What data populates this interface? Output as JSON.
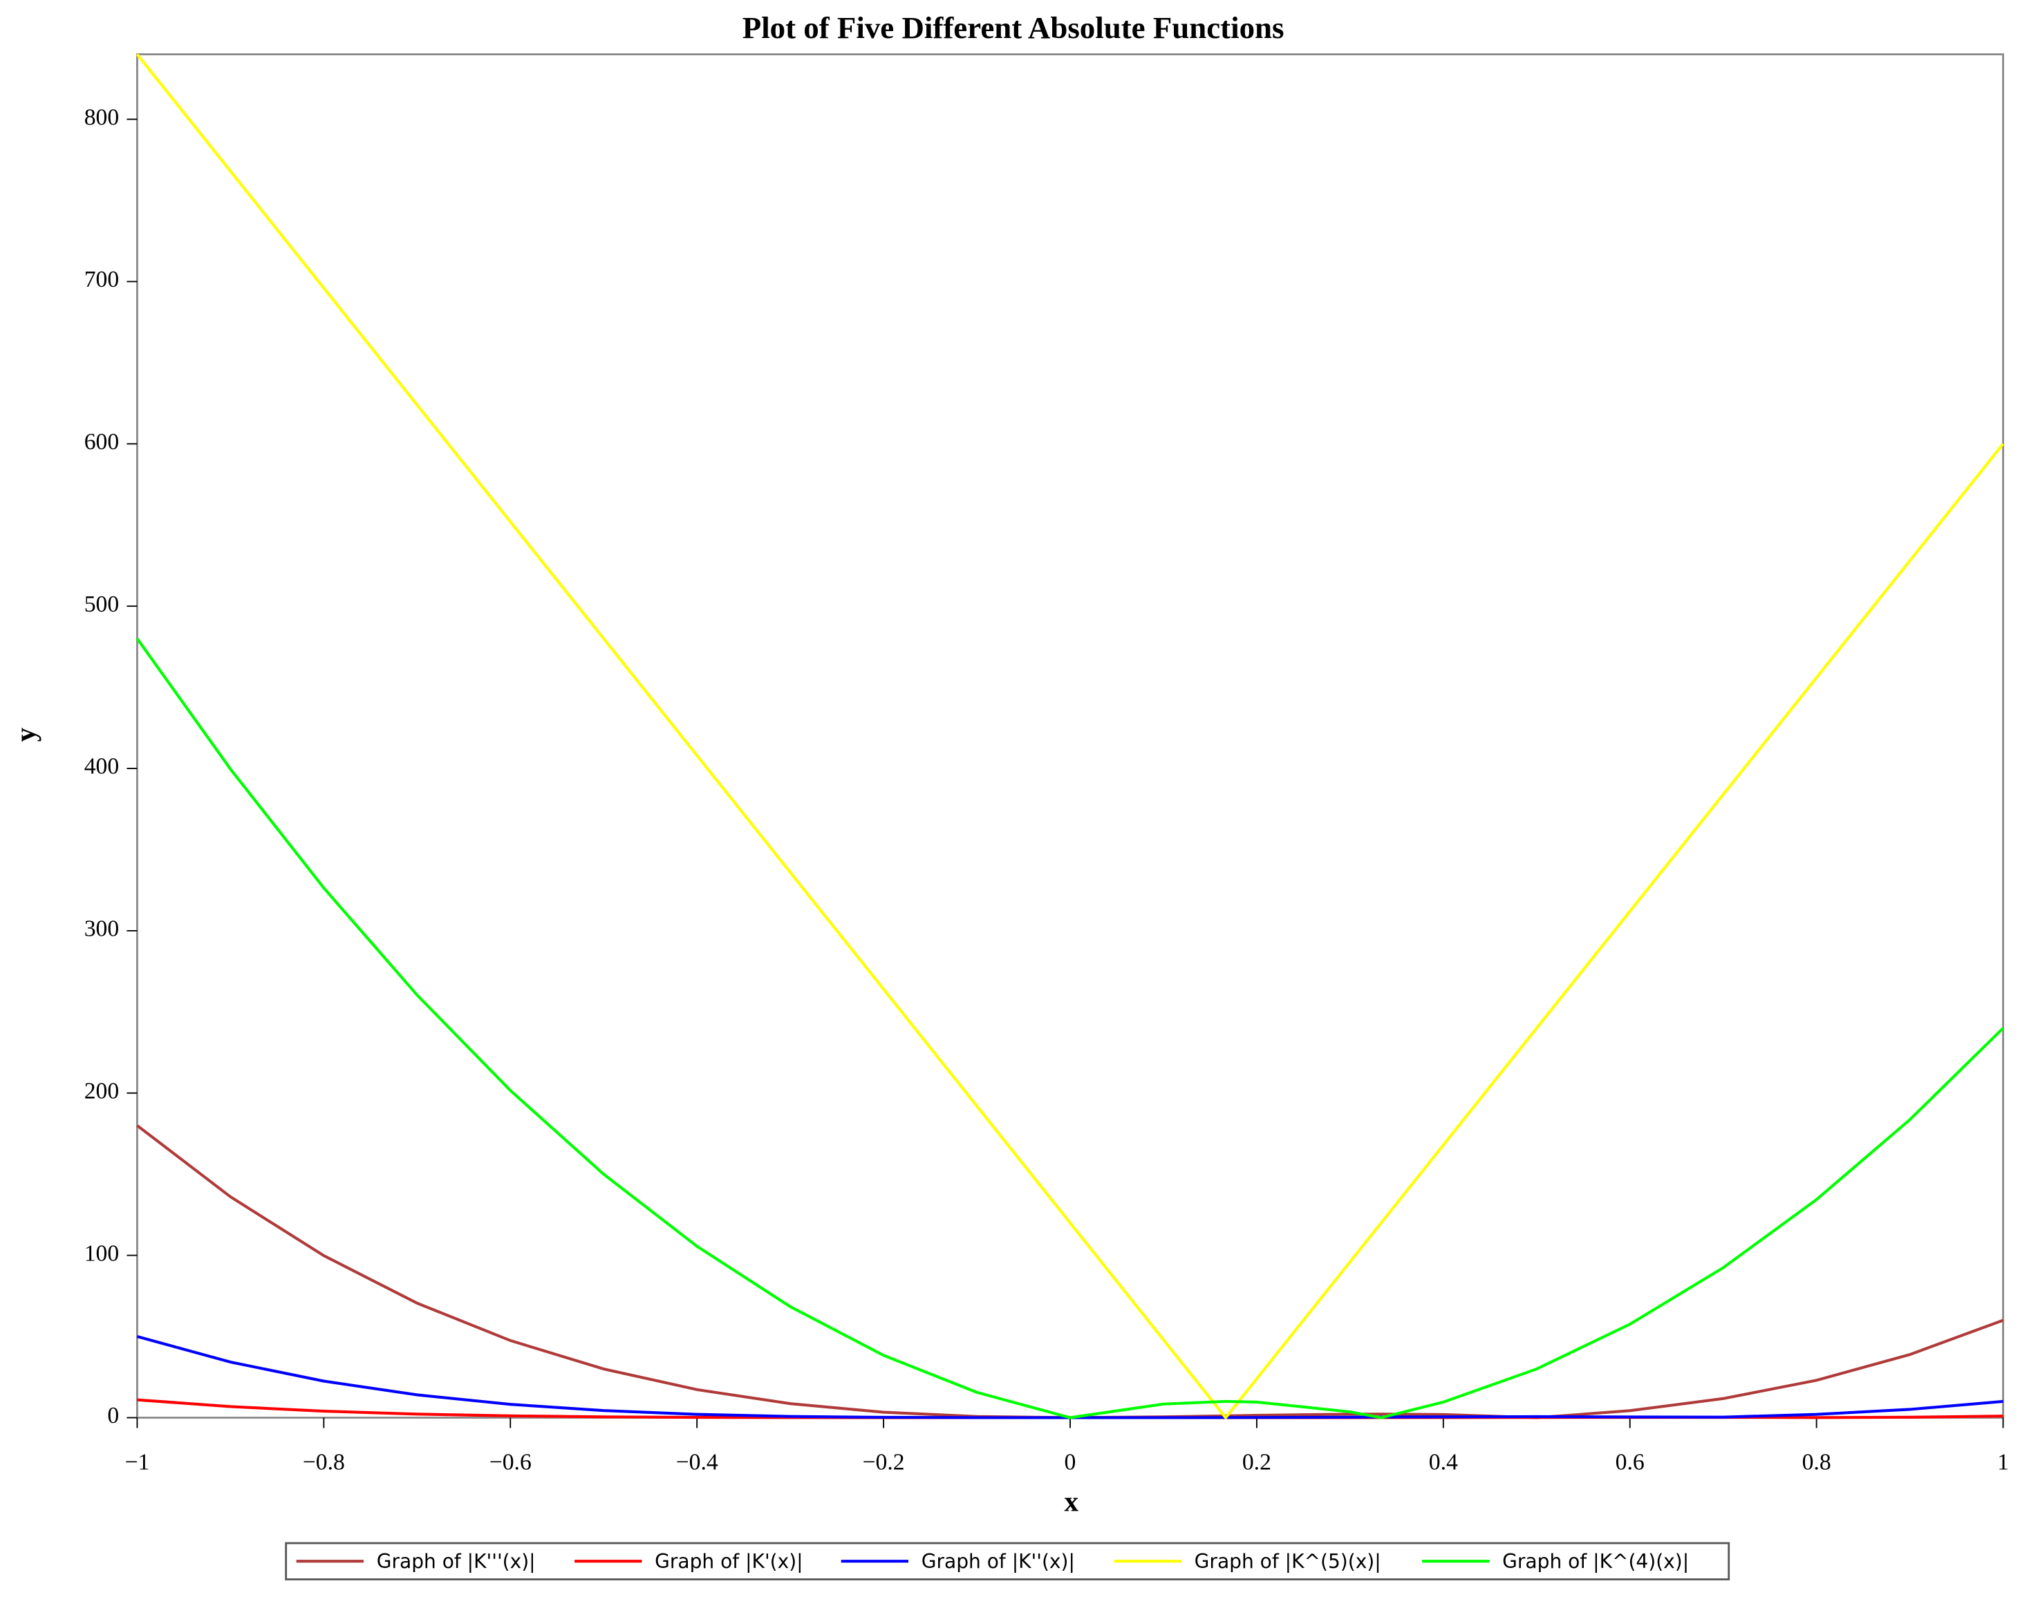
{
  "chart_data": {
    "type": "line",
    "title": "Plot of Five Different Absolute Functions",
    "x_label": "x",
    "y_label": "y",
    "x": [
      -1,
      -0.9,
      -0.8,
      -0.7,
      -0.6,
      -0.5,
      -0.4,
      -0.3,
      -0.2,
      -0.1,
      0,
      0.1,
      0.1667,
      0.2,
      0.3,
      0.3333,
      0.4,
      0.5,
      0.6,
      0.7,
      0.8,
      0.9,
      1
    ],
    "series": [
      {
        "name": "Graph of |K'''(x)|",
        "color": "#b03a3a",
        "values": [
          180,
          136.08,
          99.84,
          70.56,
          47.52,
          30,
          17.28,
          8.64,
          3.36,
          0.72,
          0,
          0.48,
          1.11,
          1.44,
          2.16,
          2.22,
          1.92,
          0,
          4.32,
          11.76,
          23.04,
          38.88,
          60
        ]
      },
      {
        "name": "Graph of |K'(x)|",
        "color": "#ff0000",
        "values": [
          11,
          6.82,
          4.01,
          2.21,
          1.11,
          0.5,
          0.19,
          0.06,
          0.01,
          0,
          0,
          0,
          0,
          0.01,
          0.03,
          0.04,
          0.07,
          0.13,
          0.18,
          0.19,
          0.08,
          0.26,
          1
        ]
      },
      {
        "name": "Graph of |K''(x)|",
        "color": "#0000ff",
        "values": [
          50,
          34.26,
          22.53,
          14.06,
          8.21,
          4.38,
          2.05,
          0.78,
          0.21,
          0.02,
          0,
          0.02,
          0.07,
          0.11,
          0.3,
          0.37,
          0.51,
          0.63,
          0.43,
          0.34,
          2.05,
          5.1,
          10
        ]
      },
      {
        "name": "Graph of |K^(5)(x)|",
        "color": "#ffff00",
        "values": [
          840,
          768,
          696,
          624,
          552,
          480,
          408,
          336,
          264,
          192,
          120,
          48,
          0,
          24,
          96,
          120,
          168,
          240,
          312,
          384,
          456,
          528,
          600
        ]
      },
      {
        "name": "Graph of |K^(4)(x)|",
        "color": "#00ff00",
        "values": [
          480,
          399.6,
          326.4,
          260.4,
          201.6,
          150,
          105.6,
          68.4,
          38.4,
          15.6,
          0,
          8.4,
          10,
          9.6,
          3.6,
          0,
          9.6,
          30,
          57.6,
          92.4,
          134.4,
          183.6,
          240
        ]
      }
    ],
    "xlim": [
      -1,
      1
    ],
    "xticks": [
      {
        "value": -1,
        "label": "−1"
      },
      {
        "value": -0.8,
        "label": "−0.8"
      },
      {
        "value": -0.6,
        "label": "−0.6"
      },
      {
        "value": -0.4,
        "label": "−0.4"
      },
      {
        "value": -0.2,
        "label": "−0.2"
      },
      0,
      0.2,
      0.4,
      0.6,
      0.8,
      1
    ],
    "ylim": [
      0,
      840
    ],
    "yticks": [
      0,
      100,
      200,
      300,
      400,
      500,
      600,
      700,
      800
    ],
    "grid": false,
    "legend": "bottom"
  }
}
